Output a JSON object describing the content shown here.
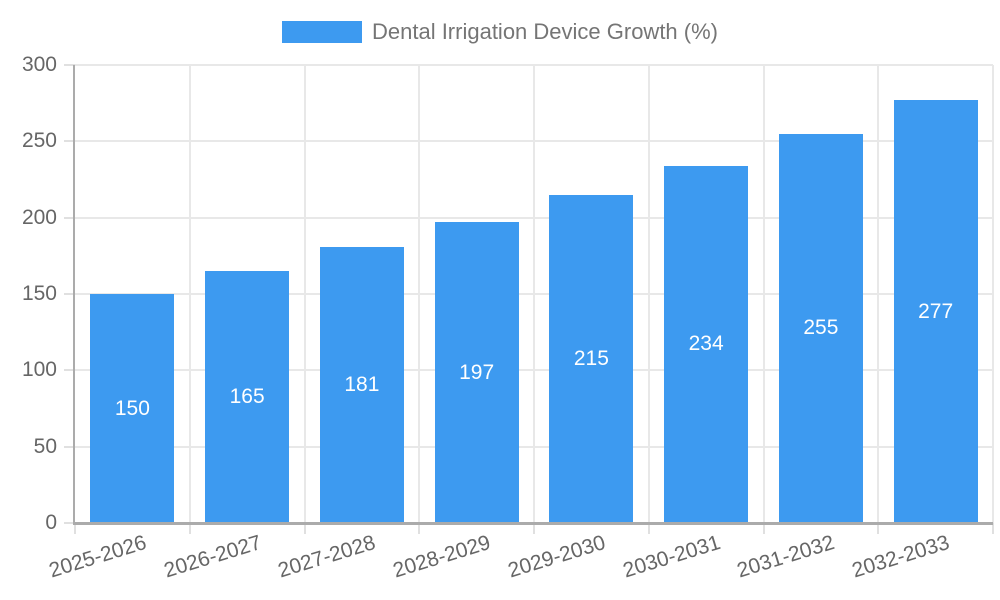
{
  "chart_data": {
    "type": "bar",
    "title": "Dental Irrigation Device Growth (%)",
    "legend": {
      "position": "top",
      "label": "Dental Irrigation Device Growth (%)"
    },
    "categories": [
      "2025-2026",
      "2026-2027",
      "2027-2028",
      "2028-2029",
      "2029-2030",
      "2030-2031",
      "2031-2032",
      "2032-2033"
    ],
    "values": [
      150,
      165,
      181,
      197,
      215,
      234,
      255,
      277
    ],
    "value_labels_shown": true,
    "xlabel": "",
    "ylabel": "",
    "ylim": [
      0,
      300
    ],
    "yticks": [
      0,
      50,
      100,
      150,
      200,
      250,
      300
    ],
    "grid": true,
    "x_tick_rotation_deg": -17,
    "colors": {
      "bar": "#3D9AF0",
      "value_label": "#FFFFFF",
      "grid_line": "#E8E8E8",
      "tick_mark": "#E0E0E0",
      "axis_line": "#ABABAB",
      "tick_label": "#666666",
      "legend_text": "#757575",
      "background": "#FFFFFF"
    }
  }
}
